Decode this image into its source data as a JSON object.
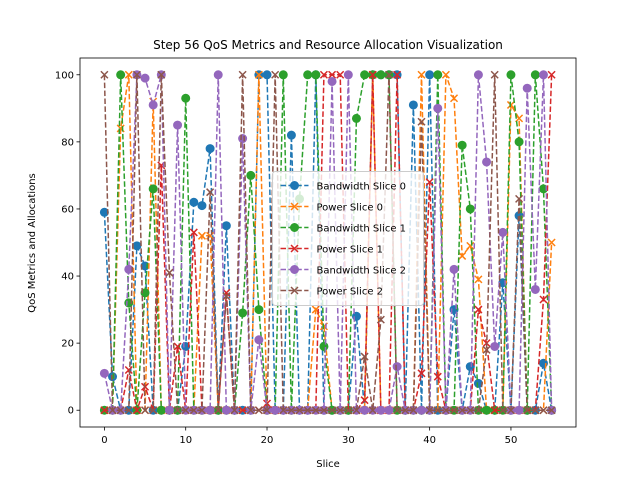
{
  "chart_data": {
    "type": "line",
    "title": "Step 56 QoS Metrics and Resource Allocation Visualization",
    "xlabel": "Slice",
    "ylabel": "QoS Metrics and Allocations",
    "xlim": [
      -3,
      58
    ],
    "ylim": [
      -5,
      105
    ],
    "xticks": [
      0,
      10,
      20,
      30,
      40,
      50
    ],
    "yticks": [
      0,
      20,
      40,
      60,
      80,
      100
    ],
    "grid": false,
    "legend_position": "center",
    "x": [
      0,
      1,
      2,
      3,
      4,
      5,
      6,
      7,
      8,
      9,
      10,
      11,
      12,
      13,
      14,
      15,
      16,
      17,
      18,
      19,
      20,
      21,
      22,
      23,
      24,
      25,
      26,
      27,
      28,
      29,
      30,
      31,
      32,
      33,
      34,
      35,
      36,
      37,
      38,
      39,
      40,
      41,
      42,
      43,
      44,
      45,
      46,
      47,
      48,
      49,
      50,
      51,
      52,
      53,
      54,
      55
    ],
    "series": [
      {
        "name": "Bandwidth Slice 0",
        "color": "#1f77b4",
        "marker": "circle",
        "values": [
          59,
          10,
          0,
          0,
          49,
          43,
          0,
          0,
          0,
          0,
          19,
          62,
          61,
          78,
          0,
          55,
          0,
          0,
          0,
          100,
          100,
          0,
          0,
          82,
          0,
          0,
          100,
          0,
          0,
          0,
          0,
          28,
          0,
          100,
          100,
          100,
          100,
          0,
          91,
          0,
          100,
          0,
          0,
          30,
          0,
          13,
          8,
          0,
          0,
          38,
          0,
          58,
          0,
          0,
          14,
          0
        ]
      },
      {
        "name": "Power Slice 0",
        "color": "#ff7f0e",
        "marker": "x",
        "values": [
          0,
          0,
          84,
          100,
          0,
          0,
          92,
          0,
          0,
          0,
          0,
          0,
          52,
          52,
          0,
          0,
          0,
          0,
          0,
          100,
          0,
          0,
          0,
          0,
          0,
          0,
          30,
          25,
          0,
          0,
          0,
          0,
          0,
          100,
          0,
          0,
          0,
          0,
          0,
          100,
          0,
          0,
          100,
          93,
          46,
          49,
          39,
          0,
          0,
          0,
          91,
          87,
          0,
          0,
          0,
          50
        ]
      },
      {
        "name": "Bandwidth Slice 1",
        "color": "#2ca02c",
        "marker": "circle",
        "values": [
          0,
          0,
          100,
          32,
          0,
          35,
          66,
          0,
          0,
          0,
          93,
          0,
          0,
          0,
          0,
          0,
          0,
          29,
          70,
          30,
          0,
          0,
          100,
          0,
          63,
          100,
          100,
          19,
          0,
          0,
          0,
          87,
          100,
          100,
          100,
          100,
          0,
          0,
          0,
          0,
          0,
          100,
          0,
          0,
          79,
          60,
          0,
          0,
          0,
          0,
          100,
          80,
          0,
          100,
          66,
          0
        ]
      },
      {
        "name": "Power Slice 1",
        "color": "#d62728",
        "marker": "x",
        "values": [
          0,
          0,
          0,
          12,
          0,
          7,
          0,
          73,
          0,
          19,
          0,
          53,
          0,
          0,
          0,
          35,
          0,
          0,
          0,
          0,
          2,
          0,
          0,
          0,
          0,
          0,
          0,
          100,
          100,
          100,
          0,
          0,
          3,
          100,
          0,
          0,
          100,
          0,
          0,
          11,
          68,
          10,
          0,
          0,
          0,
          0,
          30,
          20,
          0,
          0,
          0,
          0,
          0,
          0,
          33,
          100
        ]
      },
      {
        "name": "Bandwidth Slice 2",
        "color": "#9467bd",
        "marker": "circle",
        "values": [
          11,
          0,
          0,
          42,
          100,
          99,
          91,
          100,
          0,
          85,
          0,
          0,
          0,
          0,
          100,
          0,
          0,
          81,
          0,
          21,
          0,
          0,
          0,
          0,
          0,
          0,
          0,
          0,
          98,
          0,
          100,
          0,
          0,
          0,
          0,
          0,
          13,
          0,
          0,
          0,
          0,
          90,
          0,
          42,
          0,
          0,
          100,
          74,
          19,
          53,
          0,
          0,
          96,
          36,
          100,
          0
        ]
      },
      {
        "name": "Power Slice 2",
        "color": "#8c564b",
        "marker": "x",
        "values": [
          100,
          0,
          0,
          0,
          100,
          0,
          0,
          100,
          41,
          0,
          0,
          0,
          0,
          65,
          0,
          34,
          0,
          100,
          0,
          0,
          0,
          100,
          0,
          0,
          0,
          0,
          0,
          0,
          0,
          0,
          0,
          0,
          16,
          0,
          27,
          100,
          0,
          0,
          0,
          86,
          0,
          0,
          0,
          0,
          0,
          0,
          0,
          18,
          100,
          0,
          0,
          63,
          0,
          0,
          0,
          0
        ]
      }
    ]
  }
}
